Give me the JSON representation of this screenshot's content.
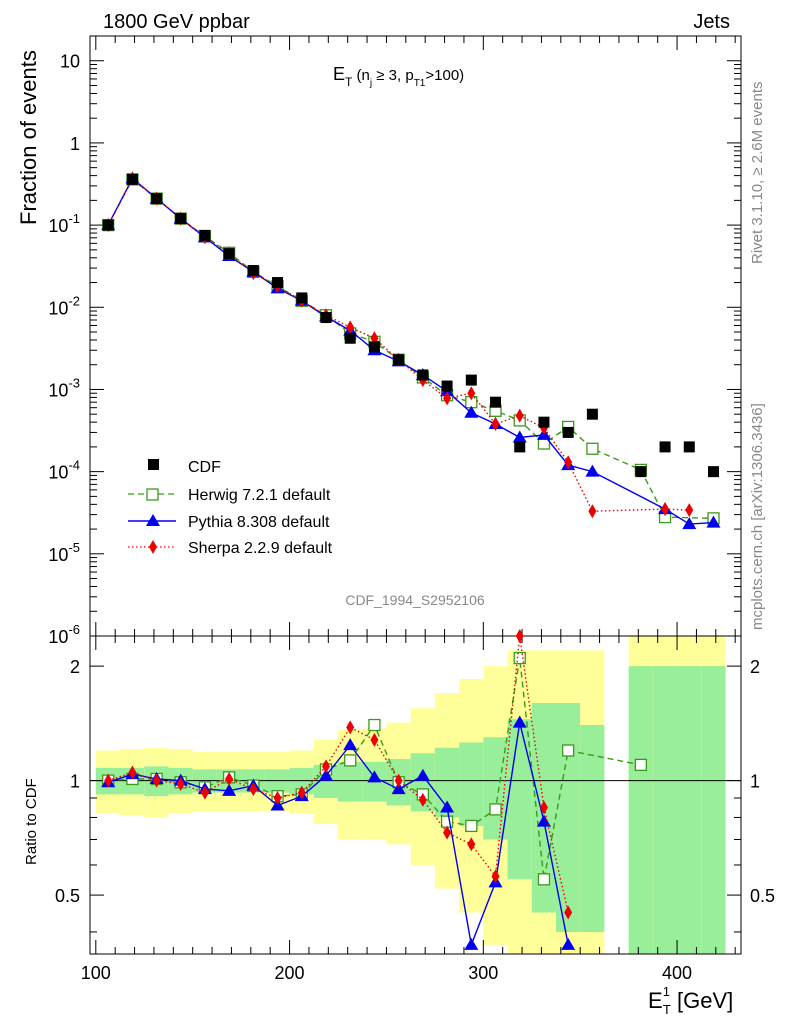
{
  "header": {
    "left": "1800 GeV ppbar",
    "right": "Jets",
    "subtitle_main": "E",
    "subtitle_sub": "T",
    "subtitle_rest": " (n",
    "subtitle_j": "j",
    "subtitle_mid": " ≥ 3, p",
    "subtitle_t1": "T1",
    "subtitle_end": ">100)",
    "analysis_id": "CDF_1994_S2952106",
    "side_label_top": "Rivet 3.1.10, ≥ 2.6M events",
    "side_label_bottom": "mcplots.cern.ch [arXiv:1306.3436]"
  },
  "axes": {
    "ylabel_top": "Fraction of events",
    "ylabel_bottom": "Ratio to CDF",
    "xlabel_main": "E",
    "xlabel_sup": "1",
    "xlabel_sub": "T",
    "xlabel_unit": " [GeV]",
    "x_ticks": [
      "100",
      "200",
      "300",
      "400"
    ],
    "y_ticks_top": [
      {
        "base": "10",
        "exp": "-6"
      },
      {
        "base": "10",
        "exp": "-5"
      },
      {
        "base": "10",
        "exp": "-4"
      },
      {
        "base": "10",
        "exp": "-3"
      },
      {
        "base": "10",
        "exp": "-2"
      },
      {
        "base": "10",
        "exp": "-1"
      },
      {
        "base": "1",
        "exp": ""
      },
      {
        "base": "10",
        "exp": ""
      }
    ],
    "y_ticks_ratio": [
      "0.5",
      "1",
      "2"
    ]
  },
  "legend": [
    {
      "label": "CDF",
      "color": "#000000",
      "marker": "square"
    },
    {
      "label": "Herwig 7.2.1 default",
      "color": "#3a9a1a",
      "marker": "open-square"
    },
    {
      "label": "Pythia 8.308 default",
      "color": "#0000ee",
      "marker": "triangle"
    },
    {
      "label": "Sherpa 2.2.9 default",
      "color": "#ee0000",
      "marker": "diamond"
    }
  ],
  "chart_data": {
    "type": "line",
    "title": "E_T (n_j ≥ 3, p_T1>100)",
    "xlabel": "E_T^1 [GeV]",
    "ylabel": "Fraction of events",
    "xlim": [
      97,
      433
    ],
    "ylim": [
      1e-06,
      20
    ],
    "yscale": "log",
    "ratio_ylim": [
      0.35,
      2.4
    ],
    "ratio_yscale": "log",
    "x": [
      106.4,
      118.9,
      131.4,
      143.8,
      156.3,
      168.8,
      181.3,
      193.8,
      206.3,
      218.8,
      231.3,
      243.8,
      256.3,
      268.8,
      281.3,
      293.8,
      306.3,
      318.8,
      331.3,
      343.8,
      356.3,
      381.3,
      393.8,
      406.3,
      418.8
    ],
    "series": [
      {
        "name": "CDF",
        "values": [
          0.1,
          0.36,
          0.21,
          0.12,
          0.075,
          0.045,
          0.028,
          0.02,
          0.013,
          0.0075,
          0.0042,
          0.0033,
          0.0023,
          0.0015,
          0.0011,
          0.0013,
          0.0007,
          0.0002,
          0.0004,
          0.0003,
          0.0005,
          0.0001,
          0.0002,
          0.0002,
          0.0001
        ]
      },
      {
        "name": "Herwig 7.2.1 default",
        "x": [
          106.4,
          118.9,
          131.4,
          143.8,
          156.3,
          168.8,
          181.3,
          193.8,
          206.3,
          218.8,
          231.3,
          243.8,
          256.3,
          268.8,
          281.3,
          293.8,
          306.3,
          318.8,
          331.3,
          343.8,
          356.3,
          381.3,
          393.8,
          418.8
        ],
        "values": [
          0.1,
          0.36,
          0.21,
          0.12,
          0.073,
          0.046,
          0.027,
          0.018,
          0.012,
          0.008,
          0.0048,
          0.0038,
          0.0023,
          0.0014,
          0.00085,
          0.0007,
          0.00055,
          0.00042,
          0.00022,
          0.00035,
          0.00019,
          0.000105,
          2.8e-05,
          2.7e-05
        ]
      },
      {
        "name": "Pythia 8.308 default",
        "x": [
          106.4,
          118.9,
          131.4,
          143.8,
          156.3,
          168.8,
          181.3,
          193.8,
          206.3,
          218.8,
          231.3,
          243.8,
          256.3,
          268.8,
          281.3,
          293.8,
          306.3,
          318.8,
          331.3,
          343.8,
          356.3,
          393.8,
          406.3,
          418.8
        ],
        "values": [
          0.1,
          0.37,
          0.21,
          0.12,
          0.071,
          0.042,
          0.027,
          0.017,
          0.012,
          0.0077,
          0.0052,
          0.003,
          0.0022,
          0.0015,
          0.00095,
          0.00052,
          0.00038,
          0.00026,
          0.00028,
          0.00012,
          0.0001,
          3.5e-05,
          2.3e-05,
          2.4e-05
        ]
      },
      {
        "name": "Sherpa 2.2.9 default",
        "x": [
          106.4,
          118.9,
          131.4,
          143.8,
          156.3,
          168.8,
          181.3,
          193.8,
          206.3,
          218.8,
          231.3,
          243.8,
          256.3,
          268.8,
          281.3,
          293.8,
          306.3,
          318.8,
          331.3,
          343.8,
          356.3,
          393.8,
          406.3
        ],
        "values": [
          0.1,
          0.37,
          0.21,
          0.12,
          0.071,
          0.045,
          0.026,
          0.018,
          0.012,
          0.008,
          0.0057,
          0.0042,
          0.0023,
          0.0013,
          0.00078,
          0.0009,
          0.00038,
          0.00048,
          0.00034,
          0.00013,
          3.3e-05,
          3.5e-05,
          3.4e-05
        ]
      }
    ],
    "ratio_series": [
      {
        "name": "Herwig 7.2.1 default",
        "x": [
          106.4,
          118.9,
          131.4,
          143.8,
          156.3,
          168.8,
          181.3,
          193.8,
          206.3,
          218.8,
          231.3,
          243.8,
          256.3,
          268.8,
          281.3,
          293.8,
          306.3,
          318.8,
          331.3,
          343.8,
          381.3
        ],
        "values": [
          1.0,
          1.01,
          1.01,
          0.99,
          0.96,
          1.02,
          0.97,
          0.91,
          0.92,
          1.07,
          1.13,
          1.4,
          0.99,
          0.92,
          0.78,
          0.76,
          0.84,
          2.1,
          0.55,
          1.2,
          1.1
        ]
      },
      {
        "name": "Pythia 8.308 default",
        "x": [
          106.4,
          118.9,
          131.4,
          143.8,
          156.3,
          168.8,
          181.3,
          193.8,
          206.3,
          218.8,
          231.3,
          243.8,
          256.3,
          268.8,
          281.3,
          293.8,
          306.3,
          318.8,
          331.3,
          343.8
        ],
        "values": [
          0.99,
          1.04,
          1.01,
          1.0,
          0.95,
          0.94,
          0.97,
          0.86,
          0.91,
          1.03,
          1.24,
          1.02,
          0.95,
          1.03,
          0.85,
          0.37,
          0.54,
          1.42,
          0.78,
          0.37
        ]
      },
      {
        "name": "Sherpa 2.2.9 default",
        "x": [
          106.4,
          118.9,
          131.4,
          143.8,
          156.3,
          168.8,
          181.3,
          193.8,
          206.3,
          218.8,
          231.3,
          243.8,
          256.3,
          268.8,
          281.3,
          293.8,
          306.3,
          318.8,
          331.3,
          343.8
        ],
        "values": [
          1.0,
          1.05,
          1.0,
          0.98,
          0.93,
          1.01,
          0.95,
          0.9,
          0.93,
          1.09,
          1.38,
          1.28,
          1.0,
          0.89,
          0.73,
          0.68,
          0.56,
          2.4,
          0.85,
          0.45
        ]
      }
    ],
    "uncertainty_bands": {
      "x_edges": [
        100,
        112.5,
        125,
        137.5,
        150,
        162.5,
        175,
        187.5,
        200,
        212.5,
        225,
        237.5,
        250,
        262.5,
        275,
        287.5,
        300,
        312.5,
        325,
        337.5,
        350,
        362.5,
        375,
        387.5,
        400,
        412.5,
        425
      ],
      "inner_lo": [
        0.92,
        0.92,
        0.91,
        0.92,
        0.93,
        0.93,
        0.93,
        0.93,
        0.92,
        0.9,
        0.88,
        0.88,
        0.86,
        0.83,
        0.8,
        0.76,
        0.7,
        0.55,
        0.45,
        0.4,
        0.4,
        null,
        0.35,
        0.35,
        0.35,
        0.35
      ],
      "inner_hi": [
        1.08,
        1.08,
        1.09,
        1.08,
        1.07,
        1.07,
        1.07,
        1.07,
        1.08,
        1.1,
        1.12,
        1.12,
        1.14,
        1.18,
        1.22,
        1.26,
        1.3,
        1.45,
        1.6,
        1.6,
        1.4,
        null,
        2.0,
        2.0,
        2.0,
        2.0
      ],
      "outer_lo": [
        0.82,
        0.81,
        0.8,
        0.82,
        0.83,
        0.83,
        0.83,
        0.83,
        0.82,
        0.77,
        0.7,
        0.7,
        0.68,
        0.6,
        0.52,
        0.45,
        0.37,
        0.35,
        0.35,
        0.35,
        0.35,
        null,
        0.35,
        0.35,
        0.35,
        0.35
      ],
      "outer_hi": [
        1.2,
        1.21,
        1.22,
        1.21,
        1.19,
        1.19,
        1.19,
        1.19,
        1.2,
        1.28,
        1.36,
        1.37,
        1.42,
        1.55,
        1.7,
        1.85,
        2.0,
        2.2,
        2.2,
        2.2,
        2.2,
        null,
        2.4,
        2.4,
        2.4,
        2.4
      ]
    }
  }
}
